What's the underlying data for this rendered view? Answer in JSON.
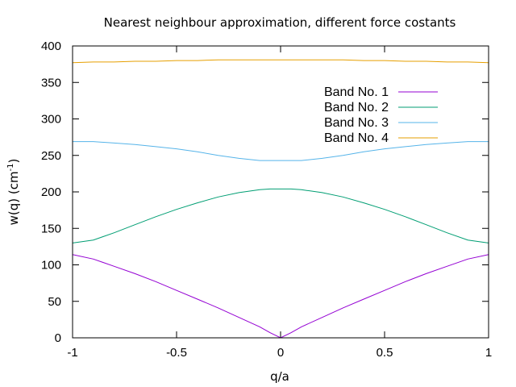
{
  "chart_data": {
    "type": "line",
    "title": "Nearest neighbour approximation, different force costants",
    "xlabel": "q/a",
    "ylabel": "w(q) (cm",
    "ylabel_sup": "-1",
    "ylabel_close": ")",
    "xlim": [
      -1,
      1
    ],
    "ylim": [
      0,
      400
    ],
    "xticks": [
      -1,
      -0.5,
      0,
      0.5,
      1
    ],
    "xtick_labels": [
      "-1",
      "-0.5",
      "0",
      "0.5",
      "1"
    ],
    "yticks": [
      0,
      50,
      100,
      150,
      200,
      250,
      300,
      350,
      400
    ],
    "ytick_labels": [
      "0",
      "50",
      "100",
      "150",
      "200",
      "250",
      "300",
      "350",
      "400"
    ],
    "legend_position": "top-right",
    "x": [
      -1,
      -0.9,
      -0.8,
      -0.7,
      -0.6,
      -0.5,
      -0.4,
      -0.3,
      -0.2,
      -0.1,
      -0.05,
      0,
      0.05,
      0.1,
      0.2,
      0.3,
      0.4,
      0.5,
      0.6,
      0.7,
      0.8,
      0.9,
      1
    ],
    "series": [
      {
        "name": "Band No. 1",
        "color": "#9400d3",
        "values": [
          114,
          108,
          98,
          88,
          77,
          65,
          53,
          41,
          28,
          15,
          7,
          0,
          7,
          15,
          28,
          41,
          53,
          65,
          77,
          88,
          98,
          108,
          114
        ]
      },
      {
        "name": "Band No. 2",
        "color": "#009e73",
        "values": [
          130,
          134,
          144,
          155,
          166,
          176,
          185,
          193,
          199,
          203,
          204,
          204,
          204,
          203,
          199,
          193,
          185,
          176,
          166,
          155,
          144,
          134,
          130
        ]
      },
      {
        "name": "Band No. 3",
        "color": "#56b4e9",
        "values": [
          269,
          269,
          267,
          265,
          262,
          259,
          255,
          250,
          246,
          243,
          243,
          243,
          243,
          243,
          246,
          250,
          255,
          259,
          262,
          265,
          267,
          269,
          269
        ]
      },
      {
        "name": "Band No. 4",
        "color": "#e69f00",
        "values": [
          377,
          378,
          378,
          379,
          379,
          380,
          380,
          381,
          381,
          381,
          381,
          381,
          381,
          381,
          381,
          381,
          380,
          380,
          379,
          379,
          378,
          378,
          377
        ]
      }
    ]
  }
}
